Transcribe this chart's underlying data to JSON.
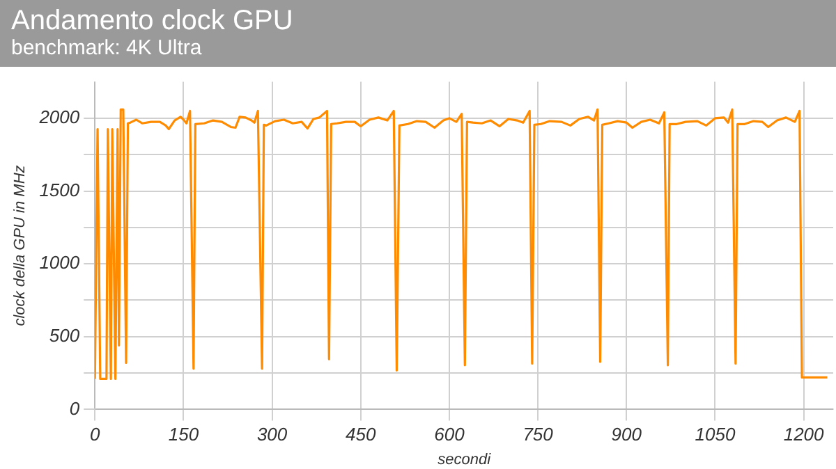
{
  "chart_data": {
    "type": "line",
    "title": "Andamento clock GPU",
    "subtitle": "benchmark: 4K Ultra",
    "xlabel": "secondi",
    "ylabel": "clock della GPU in MHz",
    "x": [
      0,
      4.5,
      9,
      19.6,
      21.9,
      27,
      29.4,
      34.7,
      38.4,
      40.7,
      43.7,
      48,
      52.8,
      55.8,
      60,
      70,
      80,
      95,
      110,
      120,
      125,
      135,
      145,
      150,
      155,
      161,
      167,
      170,
      185,
      200,
      215,
      230,
      238,
      245,
      255,
      265,
      270,
      276,
      283,
      286,
      290,
      305,
      320,
      335,
      350,
      360,
      370,
      380,
      393,
      396.4,
      400,
      410,
      425,
      440,
      450,
      465,
      480,
      495,
      506,
      511,
      515.5,
      530,
      545,
      560,
      575,
      590,
      600,
      612,
      621,
      626.4,
      630,
      640,
      655,
      670,
      685,
      700,
      715,
      725,
      736,
      740.3,
      744,
      755,
      770,
      790,
      805,
      820,
      835,
      845,
      851,
      855.5,
      859,
      870,
      885,
      900,
      910,
      925,
      940,
      955,
      964,
      970,
      973,
      985,
      1000,
      1020,
      1035,
      1050,
      1065,
      1072,
      1079,
      1084.7,
      1088,
      1100,
      1115,
      1130,
      1140,
      1155,
      1170,
      1185,
      1193,
      1197,
      1240
    ],
    "series": [
      {
        "color": "#ff8c00",
        "values": [
          210,
          1925,
          210,
          210,
          1925,
          210,
          1925,
          210,
          1925,
          440,
          2060,
          2060,
          320,
          1965,
          1970,
          1990,
          1965,
          1975,
          1975,
          1950,
          1925,
          1985,
          2010,
          1990,
          1965,
          2050,
          280,
          1960,
          1965,
          1985,
          1975,
          1940,
          1935,
          2010,
          2005,
          1985,
          1970,
          2050,
          280,
          1955,
          1950,
          1980,
          1990,
          1965,
          1975,
          1930,
          1995,
          2005,
          2050,
          345,
          1960,
          1965,
          1975,
          1975,
          1945,
          1990,
          2005,
          1985,
          2050,
          268,
          1950,
          1960,
          1980,
          1975,
          1935,
          1985,
          2000,
          1975,
          2030,
          304,
          1975,
          1970,
          1965,
          1985,
          1945,
          1995,
          1985,
          1970,
          2050,
          315,
          1955,
          1960,
          1980,
          1975,
          1950,
          1995,
          2010,
          1985,
          2060,
          327,
          1955,
          1965,
          1980,
          1970,
          1935,
          1975,
          1990,
          1965,
          2040,
          304,
          1960,
          1960,
          1975,
          1980,
          1950,
          2000,
          2005,
          1970,
          2060,
          315,
          1960,
          1960,
          1980,
          1975,
          1940,
          1985,
          2005,
          1975,
          2050,
          220,
          220
        ]
      }
    ],
    "xlim": [
      0,
      1250
    ],
    "xticks": [
      0,
      150,
      300,
      450,
      600,
      750,
      900,
      1050,
      1200
    ],
    "ylim": [
      0,
      2250
    ],
    "yticks": [
      0,
      {
        "value": 250,
        "label": null
      },
      500,
      {
        "value": 750,
        "label": null
      },
      1000,
      {
        "value": 1250,
        "label": null
      },
      1500,
      {
        "value": 1750,
        "label": null
      },
      2000
    ],
    "grid": true,
    "legend": false,
    "marker": "none",
    "line_style": "solid"
  }
}
